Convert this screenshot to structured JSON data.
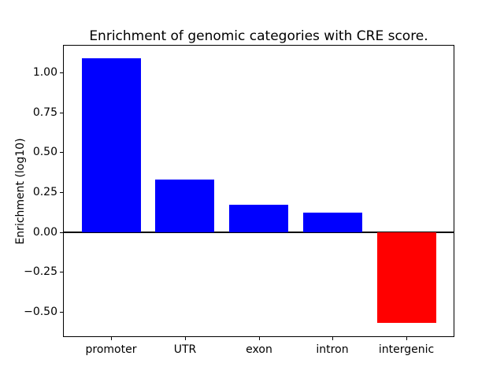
{
  "figure": {
    "background": "#ffffff",
    "axes_color": "#000000"
  },
  "chart_data": {
    "type": "bar",
    "title": "Enrichment of genomic categories with CRE score.",
    "xlabel": "",
    "ylabel": "Enrichment (log10)",
    "categories": [
      "promoter",
      "UTR",
      "exon",
      "intron",
      "intergenic"
    ],
    "values": [
      1.09,
      0.33,
      0.17,
      0.12,
      -0.57
    ],
    "bar_colors": [
      "#0000ff",
      "#0000ff",
      "#0000ff",
      "#0000ff",
      "#ff0000"
    ],
    "positive_color": "#0000ff",
    "negative_color": "#ff0000",
    "baseline": 0,
    "baseline_line_color": "#000000",
    "ylim": [
      -0.655,
      1.17
    ],
    "xlim": [
      -0.64,
      4.64
    ],
    "bar_width": 0.8,
    "grid": false,
    "legend_position": "none",
    "yticks": [
      {
        "value": 1.0,
        "label": "1.00"
      },
      {
        "value": 0.75,
        "label": "0.75"
      },
      {
        "value": 0.5,
        "label": "0.50"
      },
      {
        "value": 0.25,
        "label": "0.25"
      },
      {
        "value": 0.0,
        "label": "0.00"
      },
      {
        "value": -0.25,
        "label": "−0.25"
      },
      {
        "value": -0.5,
        "label": "−0.50"
      }
    ]
  }
}
